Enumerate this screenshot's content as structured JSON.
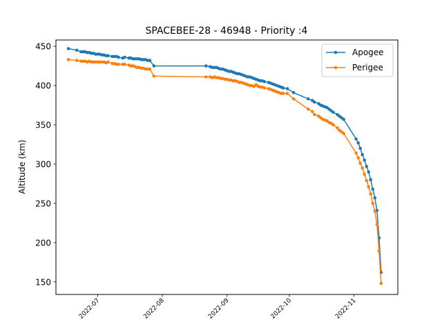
{
  "chart_data": {
    "type": "line",
    "title": "SPACEBEE-28 - 46948 - Priority :4",
    "xlabel": "",
    "ylabel": "Altitude (km)",
    "xlim": [
      "2022-06-11",
      "2022-11-22"
    ],
    "ylim": [
      134,
      458
    ],
    "xticks": [
      "2022-07",
      "2022-08",
      "2022-09",
      "2022-10",
      "2022-11"
    ],
    "yticks": [
      150,
      200,
      250,
      300,
      350,
      400,
      450
    ],
    "grid": false,
    "legend_position": "top-right",
    "series": [
      {
        "name": "Apogee",
        "color": "#1f77b4",
        "x": [
          "2022-06-17",
          "2022-06-21",
          "2022-06-23",
          "2022-06-24",
          "2022-06-25",
          "2022-06-26",
          "2022-06-27",
          "2022-06-28",
          "2022-06-29",
          "2022-06-30",
          "2022-07-01",
          "2022-07-02",
          "2022-07-03",
          "2022-07-04",
          "2022-07-05",
          "2022-07-06",
          "2022-07-08",
          "2022-07-09",
          "2022-07-10",
          "2022-07-11",
          "2022-07-13",
          "2022-07-14",
          "2022-07-16",
          "2022-07-17",
          "2022-07-18",
          "2022-07-19",
          "2022-07-20",
          "2022-07-21",
          "2022-07-22",
          "2022-07-23",
          "2022-07-24",
          "2022-07-25",
          "2022-07-26",
          "2022-07-28",
          "2022-08-22",
          "2022-08-24",
          "2022-08-25",
          "2022-08-26",
          "2022-08-27",
          "2022-08-28",
          "2022-08-29",
          "2022-08-30",
          "2022-08-31",
          "2022-09-01",
          "2022-09-02",
          "2022-09-03",
          "2022-09-04",
          "2022-09-05",
          "2022-09-06",
          "2022-09-07",
          "2022-09-08",
          "2022-09-09",
          "2022-09-10",
          "2022-09-11",
          "2022-09-12",
          "2022-09-13",
          "2022-09-14",
          "2022-09-15",
          "2022-09-16",
          "2022-09-17",
          "2022-09-18",
          "2022-09-19",
          "2022-09-21",
          "2022-09-22",
          "2022-09-23",
          "2022-09-24",
          "2022-09-25",
          "2022-09-26",
          "2022-09-27",
          "2022-09-28",
          "2022-09-30",
          "2022-10-03",
          "2022-10-10",
          "2022-10-12",
          "2022-10-13",
          "2022-10-15",
          "2022-10-16",
          "2022-10-17",
          "2022-10-18",
          "2022-10-19",
          "2022-10-20",
          "2022-10-21",
          "2022-10-22",
          "2022-10-24",
          "2022-10-25",
          "2022-10-26",
          "2022-10-27",
          "2022-11-02",
          "2022-11-03",
          "2022-11-04",
          "2022-11-05",
          "2022-11-06",
          "2022-11-07",
          "2022-11-08",
          "2022-11-09",
          "2022-11-10",
          "2022-11-11",
          "2022-11-12",
          "2022-11-13",
          "2022-11-13",
          "2022-11-14"
        ],
        "values": [
          447,
          445,
          443,
          443,
          443,
          442,
          442,
          441,
          441,
          440,
          440,
          440,
          439,
          439,
          438,
          438,
          437,
          437,
          437,
          436,
          435,
          436,
          435,
          435,
          434,
          434,
          434,
          434,
          433,
          433,
          433,
          432,
          432,
          425,
          425,
          424,
          423,
          423,
          423,
          422,
          421,
          421,
          420,
          419,
          418,
          418,
          417,
          416,
          415,
          415,
          414,
          413,
          412,
          411,
          411,
          410,
          409,
          408,
          407,
          406,
          406,
          405,
          404,
          403,
          402,
          401,
          400,
          399,
          398,
          397,
          396,
          391,
          383,
          381,
          379,
          377,
          375,
          374,
          373,
          372,
          370,
          368,
          366,
          363,
          361,
          359,
          357,
          332,
          327,
          320,
          312,
          305,
          297,
          290,
          280,
          268,
          257,
          241,
          206,
          206,
          162
        ]
      },
      {
        "name": "Perigee",
        "color": "#ff7f0e",
        "x": [
          "2022-06-17",
          "2022-06-21",
          "2022-06-23",
          "2022-06-24",
          "2022-06-25",
          "2022-06-26",
          "2022-06-27",
          "2022-06-28",
          "2022-06-29",
          "2022-06-30",
          "2022-07-01",
          "2022-07-02",
          "2022-07-03",
          "2022-07-04",
          "2022-07-05",
          "2022-07-06",
          "2022-07-08",
          "2022-07-09",
          "2022-07-10",
          "2022-07-11",
          "2022-07-13",
          "2022-07-14",
          "2022-07-16",
          "2022-07-17",
          "2022-07-18",
          "2022-07-19",
          "2022-07-20",
          "2022-07-21",
          "2022-07-22",
          "2022-07-23",
          "2022-07-24",
          "2022-07-25",
          "2022-07-26",
          "2022-07-28",
          "2022-08-22",
          "2022-08-24",
          "2022-08-25",
          "2022-08-26",
          "2022-08-27",
          "2022-08-28",
          "2022-08-29",
          "2022-08-30",
          "2022-08-31",
          "2022-09-01",
          "2022-09-02",
          "2022-09-03",
          "2022-09-04",
          "2022-09-05",
          "2022-09-06",
          "2022-09-07",
          "2022-09-08",
          "2022-09-09",
          "2022-09-10",
          "2022-09-11",
          "2022-09-12",
          "2022-09-13",
          "2022-09-14",
          "2022-09-15",
          "2022-09-16",
          "2022-09-17",
          "2022-09-18",
          "2022-09-19",
          "2022-09-21",
          "2022-09-22",
          "2022-09-23",
          "2022-09-24",
          "2022-09-25",
          "2022-09-26",
          "2022-09-27",
          "2022-09-28",
          "2022-09-30",
          "2022-10-03",
          "2022-10-10",
          "2022-10-12",
          "2022-10-13",
          "2022-10-15",
          "2022-10-16",
          "2022-10-17",
          "2022-10-18",
          "2022-10-19",
          "2022-10-20",
          "2022-10-21",
          "2022-10-22",
          "2022-10-24",
          "2022-10-25",
          "2022-10-26",
          "2022-10-27",
          "2022-11-02",
          "2022-11-03",
          "2022-11-04",
          "2022-11-05",
          "2022-11-06",
          "2022-11-07",
          "2022-11-08",
          "2022-11-09",
          "2022-11-10",
          "2022-11-11",
          "2022-11-12",
          "2022-11-13",
          "2022-11-13",
          "2022-11-14"
        ],
        "values": [
          433,
          432,
          431,
          431,
          431,
          430,
          431,
          430,
          430,
          430,
          430,
          430,
          430,
          430,
          429,
          430,
          428,
          428,
          427,
          427,
          427,
          427,
          426,
          425,
          425,
          424,
          423,
          423,
          422,
          422,
          421,
          421,
          421,
          412,
          411,
          411,
          410,
          411,
          410,
          410,
          409,
          409,
          408,
          408,
          407,
          407,
          406,
          406,
          405,
          404,
          404,
          403,
          402,
          401,
          400,
          400,
          399,
          401,
          399,
          398,
          398,
          397,
          396,
          395,
          394,
          393,
          392,
          391,
          390,
          390,
          390,
          383,
          370,
          367,
          363,
          361,
          359,
          357,
          356,
          355,
          353,
          352,
          350,
          346,
          343,
          341,
          339,
          314,
          308,
          301,
          295,
          287,
          279,
          271,
          262,
          250,
          240,
          223,
          189,
          189,
          148
        ]
      }
    ]
  }
}
